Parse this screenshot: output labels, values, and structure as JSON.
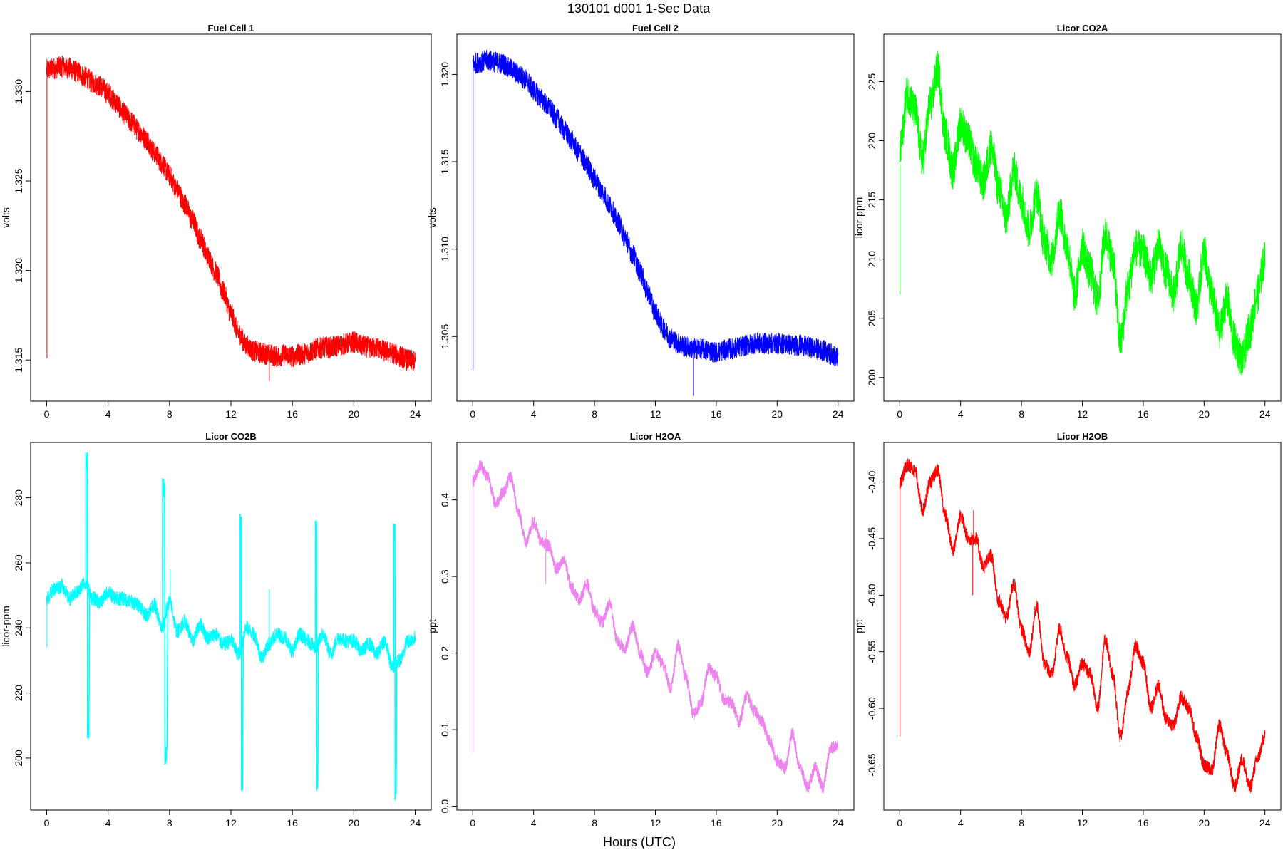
{
  "figure": {
    "title": "130101   d001   1-Sec Data",
    "xlabel": "Hours (UTC)"
  },
  "chart_data": [
    {
      "type": "line",
      "title": "Fuel Cell 1",
      "ylabel": "volts",
      "color": "#ff0000",
      "xlim": [
        0,
        24
      ],
      "xticks": [
        0,
        4,
        8,
        12,
        16,
        20,
        24
      ],
      "ylim": [
        1.3127,
        1.3332
      ],
      "yticks": [
        1.315,
        1.32,
        1.325,
        1.33
      ],
      "ytick_labels": [
        "1.315",
        "1.320",
        "1.325",
        "1.330"
      ],
      "noise": 0.0006,
      "x": [
        0,
        0.5,
        1,
        1.5,
        2,
        2.5,
        3,
        3.5,
        4,
        4.5,
        5,
        5.5,
        6,
        6.5,
        7,
        7.5,
        8,
        8.5,
        9,
        9.5,
        10,
        10.5,
        11,
        11.5,
        12,
        12.5,
        13,
        13.5,
        14,
        14.5,
        15,
        15.5,
        16,
        16.5,
        17,
        17.5,
        18,
        18.5,
        19,
        19.5,
        20,
        20.5,
        21,
        21.5,
        22,
        22.5,
        23,
        23.5,
        24
      ],
      "y": [
        1.3312,
        1.3313,
        1.3314,
        1.3313,
        1.3311,
        1.3308,
        1.3305,
        1.3303,
        1.3299,
        1.3294,
        1.3288,
        1.3283,
        1.3278,
        1.3273,
        1.3266,
        1.326,
        1.3253,
        1.3245,
        1.3237,
        1.3228,
        1.3218,
        1.3208,
        1.3199,
        1.3188,
        1.3176,
        1.3165,
        1.3158,
        1.3155,
        1.3154,
        1.3153,
        1.3152,
        1.3153,
        1.3152,
        1.3153,
        1.3154,
        1.3156,
        1.3157,
        1.3157,
        1.3158,
        1.3159,
        1.316,
        1.3158,
        1.3157,
        1.3157,
        1.3155,
        1.3154,
        1.3152,
        1.315,
        1.3149
      ],
      "spikes": [
        {
          "x": 0.02,
          "y0": 1.3312,
          "y1": 1.3151
        },
        {
          "x": 14.5,
          "y0": 1.3152,
          "y1": 1.3138
        }
      ]
    },
    {
      "type": "line",
      "title": "Fuel Cell 2",
      "ylabel": "volts",
      "color": "#0000ff",
      "xlim": [
        0,
        24
      ],
      "xticks": [
        0,
        4,
        8,
        12,
        16,
        20,
        24
      ],
      "ylim": [
        1.3013,
        1.3223
      ],
      "yticks": [
        1.305,
        1.31,
        1.315,
        1.32
      ],
      "ytick_labels": [
        "1.305",
        "1.310",
        "1.315",
        "1.320"
      ],
      "noise": 0.0006,
      "x": [
        0,
        0.5,
        1,
        1.5,
        2,
        2.5,
        3,
        3.5,
        4,
        4.5,
        5,
        5.5,
        6,
        6.5,
        7,
        7.5,
        8,
        8.5,
        9,
        9.5,
        10,
        10.5,
        11,
        11.5,
        12,
        12.5,
        13,
        13.5,
        14,
        14.5,
        15,
        15.5,
        16,
        16.5,
        17,
        17.5,
        18,
        18.5,
        19,
        19.5,
        20,
        20.5,
        21,
        21.5,
        22,
        22.5,
        23,
        23.5,
        24
      ],
      "y": [
        1.3206,
        1.3207,
        1.3208,
        1.3207,
        1.3206,
        1.3203,
        1.32,
        1.3197,
        1.3191,
        1.3186,
        1.3181,
        1.3175,
        1.3168,
        1.3162,
        1.3155,
        1.3148,
        1.314,
        1.3133,
        1.3125,
        1.3116,
        1.3107,
        1.3097,
        1.3087,
        1.3075,
        1.3064,
        1.3055,
        1.3049,
        1.3046,
        1.3044,
        1.3043,
        1.3043,
        1.3042,
        1.3041,
        1.3042,
        1.3043,
        1.3044,
        1.3045,
        1.3046,
        1.3046,
        1.3046,
        1.3046,
        1.3046,
        1.3045,
        1.3045,
        1.3044,
        1.3043,
        1.3042,
        1.304,
        1.3038
      ],
      "spikes": [
        {
          "x": 0.02,
          "y0": 1.3206,
          "y1": 1.3031
        },
        {
          "x": 14.5,
          "y0": 1.3043,
          "y1": 1.3016
        }
      ]
    },
    {
      "type": "line",
      "title": "Licor CO2A",
      "ylabel": "licor-ppm",
      "color": "#00ff00",
      "xlim": [
        0,
        24
      ],
      "xticks": [
        0,
        4,
        8,
        12,
        16,
        20,
        24
      ],
      "ylim": [
        198,
        229
      ],
      "yticks": [
        200,
        205,
        210,
        215,
        220,
        225
      ],
      "ytick_labels": [
        "200",
        "205",
        "210",
        "215",
        "220",
        "225"
      ],
      "noise": 1.6,
      "x": [
        0,
        0.5,
        1,
        1.5,
        2,
        2.5,
        3,
        3.5,
        4,
        4.5,
        5,
        5.5,
        6,
        6.5,
        7,
        7.5,
        8,
        8.5,
        9,
        9.5,
        10,
        10.5,
        11,
        11.5,
        12,
        12.5,
        13,
        13.5,
        14,
        14.5,
        15,
        15.5,
        16,
        16.5,
        17,
        17.5,
        18,
        18.5,
        19,
        19.5,
        20,
        20.5,
        21,
        21.5,
        22,
        22.5,
        23,
        23.5,
        24
      ],
      "y": [
        219,
        224,
        222.5,
        218.5,
        223,
        226,
        220.5,
        217.5,
        221.5,
        220,
        218,
        216.5,
        219.5,
        216,
        213.5,
        217.5,
        215,
        212.5,
        215.5,
        211.5,
        210,
        214,
        211,
        207,
        211,
        209,
        206.5,
        212,
        210,
        203,
        207.5,
        211,
        210.5,
        208.5,
        211,
        209,
        207,
        211,
        208.5,
        206,
        210.5,
        207,
        204,
        206.5,
        203,
        201.5,
        204,
        207,
        210
      ],
      "spikes": [
        {
          "x": 0.02,
          "y0": 218,
          "y1": 207
        }
      ]
    },
    {
      "type": "line",
      "title": "Licor CO2B",
      "ylabel": "licor-ppm",
      "color": "#00ffff",
      "xlim": [
        0,
        24
      ],
      "xticks": [
        0,
        4,
        8,
        12,
        16,
        20,
        24
      ],
      "ylim": [
        184,
        297
      ],
      "yticks": [
        200,
        220,
        240,
        260,
        280
      ],
      "ytick_labels": [
        "200",
        "220",
        "240",
        "260",
        "280"
      ],
      "noise": 2.2,
      "x": [
        0,
        0.5,
        1,
        1.5,
        2,
        2.5,
        3,
        3.5,
        4,
        4.5,
        5,
        5.5,
        6,
        6.5,
        7,
        7.5,
        8,
        8.5,
        9,
        9.5,
        10,
        10.5,
        11,
        11.5,
        12,
        12.5,
        13,
        13.5,
        14,
        14.5,
        15,
        15.5,
        16,
        16.5,
        17,
        17.5,
        18,
        18.5,
        19,
        19.5,
        20,
        20.5,
        21,
        21.5,
        22,
        22.5,
        23,
        23.5,
        24
      ],
      "y": [
        249,
        252,
        253,
        249,
        251,
        254,
        249,
        248,
        251,
        249,
        249,
        248,
        247,
        244,
        247,
        240,
        248,
        239,
        242,
        236,
        241,
        237,
        238,
        235,
        236,
        232,
        240,
        238,
        231,
        235,
        238,
        237,
        233,
        238,
        236,
        234,
        238,
        232,
        237,
        236,
        236,
        233,
        235,
        232,
        236,
        228,
        230,
        236,
        237
      ],
      "excursions": [
        {
          "x0": 2.55,
          "x1": 2.8,
          "hi": 294,
          "lo": 206
        },
        {
          "x0": 7.55,
          "x1": 7.9,
          "hi": 286,
          "lo": 198
        },
        {
          "x0": 12.6,
          "x1": 12.8,
          "hi": 275,
          "lo": 190
        },
        {
          "x0": 17.5,
          "x1": 17.7,
          "hi": 273,
          "lo": 190
        },
        {
          "x0": 22.6,
          "x1": 22.8,
          "hi": 272,
          "lo": 187
        }
      ],
      "spikes": [
        {
          "x": 0.02,
          "y0": 249,
          "y1": 234
        },
        {
          "x": 14.5,
          "y0": 235,
          "y1": 252
        },
        {
          "x": 8.05,
          "y0": 249,
          "y1": 258
        }
      ]
    },
    {
      "type": "line",
      "title": "Licor H2OA",
      "ylabel": "ppt",
      "color": "#ee82ee",
      "xlim": [
        0,
        24
      ],
      "xticks": [
        0,
        4,
        8,
        12,
        16,
        20,
        24
      ],
      "ylim": [
        -0.005,
        0.475
      ],
      "yticks": [
        0.0,
        0.1,
        0.2,
        0.3,
        0.4
      ],
      "ytick_labels": [
        "0.0",
        "0.1",
        "0.2",
        "0.3",
        "0.4"
      ],
      "noise": 0.008,
      "x": [
        0,
        0.5,
        1,
        1.5,
        2,
        2.5,
        3,
        3.5,
        4,
        4.5,
        5,
        5.5,
        6,
        6.5,
        7,
        7.5,
        8,
        8.5,
        9,
        9.5,
        10,
        10.5,
        11,
        11.5,
        12,
        12.5,
        13,
        13.5,
        14,
        14.5,
        15,
        15.5,
        16,
        16.5,
        17,
        17.5,
        18,
        18.5,
        19,
        19.5,
        20,
        20.5,
        21,
        21.5,
        22,
        22.5,
        23,
        23.5,
        24
      ],
      "y": [
        0.425,
        0.445,
        0.43,
        0.395,
        0.41,
        0.43,
        0.385,
        0.345,
        0.37,
        0.345,
        0.34,
        0.31,
        0.32,
        0.285,
        0.27,
        0.29,
        0.255,
        0.24,
        0.265,
        0.215,
        0.205,
        0.235,
        0.2,
        0.175,
        0.2,
        0.185,
        0.155,
        0.21,
        0.17,
        0.12,
        0.135,
        0.18,
        0.17,
        0.14,
        0.135,
        0.11,
        0.145,
        0.125,
        0.11,
        0.085,
        0.06,
        0.05,
        0.095,
        0.05,
        0.025,
        0.05,
        0.025,
        0.075,
        0.08
      ],
      "spikes": [
        {
          "x": 0.02,
          "y0": 0.425,
          "y1": 0.07
        },
        {
          "x": 4.8,
          "y0": 0.34,
          "y1": 0.29
        },
        {
          "x": 4.85,
          "y0": 0.34,
          "y1": 0.36
        }
      ]
    },
    {
      "type": "line",
      "title": "Licor H2OB",
      "ylabel": "ppt",
      "color": "#ff0000",
      "xlim": [
        0,
        24
      ],
      "xticks": [
        0,
        4,
        8,
        12,
        16,
        20,
        24
      ],
      "ylim": [
        -0.69,
        -0.365
      ],
      "yticks": [
        -0.65,
        -0.6,
        -0.55,
        -0.5,
        -0.45,
        -0.4
      ],
      "ytick_labels": [
        "-0.65",
        "-0.60",
        "-0.55",
        "-0.50",
        "-0.45",
        "-0.40"
      ],
      "noise": 0.006,
      "x": [
        0,
        0.5,
        1,
        1.5,
        2,
        2.5,
        3,
        3.5,
        4,
        4.5,
        5,
        5.5,
        6,
        6.5,
        7,
        7.5,
        8,
        8.5,
        9,
        9.5,
        10,
        10.5,
        11,
        11.5,
        12,
        12.5,
        13,
        13.5,
        14,
        14.5,
        15,
        15.5,
        16,
        16.5,
        17,
        17.5,
        18,
        18.5,
        19,
        19.5,
        20,
        20.5,
        21,
        21.5,
        22,
        22.5,
        23,
        23.5,
        24
      ],
      "y": [
        -0.4,
        -0.385,
        -0.39,
        -0.425,
        -0.4,
        -0.39,
        -0.43,
        -0.46,
        -0.43,
        -0.45,
        -0.45,
        -0.475,
        -0.465,
        -0.505,
        -0.52,
        -0.49,
        -0.53,
        -0.55,
        -0.51,
        -0.56,
        -0.57,
        -0.53,
        -0.555,
        -0.58,
        -0.56,
        -0.57,
        -0.6,
        -0.54,
        -0.57,
        -0.625,
        -0.585,
        -0.545,
        -0.56,
        -0.6,
        -0.58,
        -0.61,
        -0.615,
        -0.59,
        -0.6,
        -0.625,
        -0.65,
        -0.655,
        -0.615,
        -0.64,
        -0.67,
        -0.645,
        -0.67,
        -0.645,
        -0.625
      ],
      "spikes": [
        {
          "x": 0.02,
          "y0": -0.4,
          "y1": -0.625
        },
        {
          "x": 4.8,
          "y0": -0.45,
          "y1": -0.5
        },
        {
          "x": 4.85,
          "y0": -0.45,
          "y1": -0.425
        }
      ]
    }
  ]
}
